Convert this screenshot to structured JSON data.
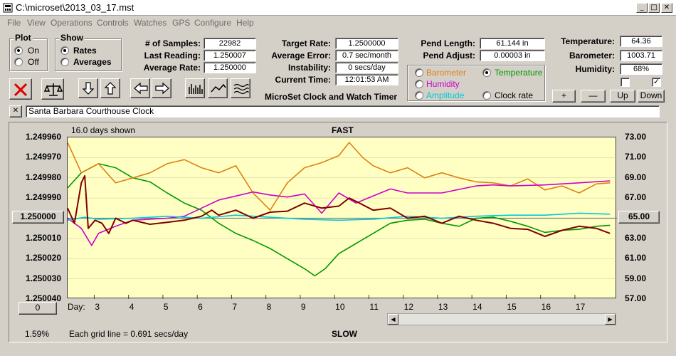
{
  "window": {
    "title": "C:\\microset\\2013_03_17.mst",
    "min": "_",
    "max": "□",
    "close": "✕"
  },
  "menu": [
    "File",
    "View",
    "Operations",
    "Controls",
    "Watches",
    "GPS",
    "Configure",
    "Help"
  ],
  "plot_group": {
    "title": "Plot",
    "on": "On",
    "off": "Off",
    "selected": "On"
  },
  "show_group": {
    "title": "Show",
    "rates": "Rates",
    "averages": "Averages",
    "selected": "Rates"
  },
  "stats": {
    "samples_label": "# of Samples:",
    "samples": "22982",
    "last_label": "Last Reading:",
    "last": "1.250007",
    "avg_rate_label": "Average Rate:",
    "avg_rate": "1.250000"
  },
  "rates": {
    "target_label": "Target Rate:",
    "target": "1.2500000",
    "avg_error_label": "Average Error:",
    "avg_error": "0.7 sec/month",
    "instability_label": "Instability:",
    "instability": "0 secs/day",
    "current_time_label": "Current Time:",
    "current_time": "12:01:53 AM"
  },
  "app_caption": "MicroSet Clock and Watch Timer",
  "pend": {
    "length_label": "Pend Length:",
    "length": "61.144 in",
    "adjust_label": "Pend Adjust:",
    "adjust": "0.00003 in"
  },
  "sensor_series": {
    "barometer": "Barometer",
    "temperature": "Temperature",
    "humidity": "Humidity",
    "amplitude": "Amplitude",
    "clock_rate": "Clock rate",
    "selected": "Temperature"
  },
  "env": {
    "temperature_label": "Temperature:",
    "temperature": "64.36",
    "barometer_label": "Barometer:",
    "barometer": "1003.71",
    "humidity_label": "Humidity:",
    "humidity": "68%"
  },
  "env_checkboxes": [
    false,
    true
  ],
  "adjust_buttons": {
    "plus": "+",
    "minus": "—",
    "up": "Up",
    "down": "Down"
  },
  "watch_name": "Santa Barbara Courthouse Clock",
  "watch_close": "✕",
  "colors": {
    "plot_bg": "#ffffc4",
    "rate": "#800000",
    "temperature": "#009900",
    "barometer": "#e08010",
    "humidity": "#cc00cc",
    "amplitude": "#00c8d8",
    "clock_rate": "#000000"
  },
  "chart_data": {
    "type": "line",
    "title": "FAST",
    "bottom_label": "SLOW",
    "days_shown": "16.0 days shown",
    "grid_note": "Each grid line = 0.691 secs/day",
    "percent": "1.59%",
    "xlabel": "Day:",
    "x_ticks": [
      "3",
      "4",
      "5",
      "6",
      "7",
      "8",
      "9",
      "10",
      "11",
      "12",
      "13",
      "14",
      "15",
      "16",
      "17"
    ],
    "left_ticks": [
      "1.249960",
      "1.249970",
      "1.249980",
      "1.249990",
      "1.250000",
      "1.250010",
      "1.250020",
      "1.250030",
      "1.250040"
    ],
    "left_center": "1.250000",
    "left_offset": "0",
    "right_ticks": [
      "73.00",
      "71.00",
      "69.00",
      "67.00",
      "65.00",
      "63.00",
      "61.00",
      "59.00",
      "57.00"
    ],
    "right_center": "65.00",
    "xlim": [
      2.1,
      18.1
    ],
    "left_ylim": [
      1.24996,
      1.25004
    ],
    "right_ylim": [
      57,
      73
    ],
    "series": [
      {
        "name": "Temperature",
        "points": [
          [
            2.1,
            68.0
          ],
          [
            2.5,
            69.5
          ],
          [
            3.0,
            70.4
          ],
          [
            3.5,
            70.0
          ],
          [
            4.0,
            69.0
          ],
          [
            4.5,
            68.6
          ],
          [
            5.0,
            67.5
          ],
          [
            5.5,
            66.5
          ],
          [
            6.0,
            65.8
          ],
          [
            6.5,
            64.5
          ],
          [
            7.0,
            63.5
          ],
          [
            7.5,
            62.8
          ],
          [
            8.0,
            62.0
          ],
          [
            8.5,
            61.0
          ],
          [
            9.0,
            60.0
          ],
          [
            9.3,
            59.3
          ],
          [
            9.6,
            60.0
          ],
          [
            10.0,
            61.5
          ],
          [
            10.5,
            62.5
          ],
          [
            11.0,
            63.5
          ],
          [
            11.5,
            64.5
          ],
          [
            12.0,
            64.8
          ],
          [
            12.5,
            64.9
          ],
          [
            13.0,
            64.5
          ],
          [
            13.5,
            64.2
          ],
          [
            14.0,
            65.0
          ],
          [
            14.5,
            65.1
          ],
          [
            15.0,
            64.7
          ],
          [
            15.5,
            64.2
          ],
          [
            16.0,
            63.6
          ],
          [
            16.5,
            63.8
          ],
          [
            17.0,
            63.9
          ],
          [
            17.5,
            64.2
          ],
          [
            17.9,
            64.3
          ]
        ]
      },
      {
        "name": "Barometer",
        "points": [
          [
            2.1,
            72.5
          ],
          [
            2.5,
            69.5
          ],
          [
            3.0,
            70.4
          ],
          [
            3.5,
            68.5
          ],
          [
            4.0,
            69.0
          ],
          [
            4.5,
            69.5
          ],
          [
            5.0,
            70.4
          ],
          [
            5.5,
            70.8
          ],
          [
            6.0,
            70.0
          ],
          [
            6.5,
            69.5
          ],
          [
            7.0,
            70.2
          ],
          [
            7.5,
            67.5
          ],
          [
            8.0,
            65.8
          ],
          [
            8.5,
            68.5
          ],
          [
            9.0,
            70.0
          ],
          [
            9.5,
            70.5
          ],
          [
            10.0,
            71.2
          ],
          [
            10.3,
            72.5
          ],
          [
            10.7,
            71.0
          ],
          [
            11.0,
            70.2
          ],
          [
            11.5,
            69.5
          ],
          [
            12.0,
            70.0
          ],
          [
            12.5,
            69.0
          ],
          [
            13.0,
            69.5
          ],
          [
            13.5,
            69.0
          ],
          [
            14.0,
            68.6
          ],
          [
            14.5,
            68.5
          ],
          [
            15.0,
            68.2
          ],
          [
            15.5,
            68.9
          ],
          [
            16.0,
            67.8
          ],
          [
            16.5,
            68.2
          ],
          [
            17.0,
            67.5
          ],
          [
            17.5,
            68.4
          ],
          [
            17.9,
            68.5
          ]
        ]
      },
      {
        "name": "Humidity",
        "points": [
          [
            2.1,
            65.0
          ],
          [
            2.5,
            64.0
          ],
          [
            2.8,
            62.3
          ],
          [
            3.0,
            63.5
          ],
          [
            3.5,
            64.2
          ],
          [
            4.0,
            64.8
          ],
          [
            5.0,
            65.0
          ],
          [
            5.5,
            65.2
          ],
          [
            6.0,
            66.0
          ],
          [
            6.5,
            66.8
          ],
          [
            7.0,
            67.2
          ],
          [
            7.5,
            67.6
          ],
          [
            8.0,
            67.3
          ],
          [
            8.5,
            67.1
          ],
          [
            9.0,
            67.4
          ],
          [
            9.5,
            65.5
          ],
          [
            10.0,
            67.5
          ],
          [
            10.5,
            66.5
          ],
          [
            11.0,
            67.2
          ],
          [
            11.5,
            67.9
          ],
          [
            12.0,
            67.5
          ],
          [
            13.0,
            67.5
          ],
          [
            14.0,
            68.2
          ],
          [
            14.5,
            68.3
          ],
          [
            15.0,
            68.2
          ],
          [
            16.0,
            68.3
          ],
          [
            17.0,
            68.5
          ],
          [
            17.9,
            68.7
          ]
        ]
      },
      {
        "name": "Amplitude",
        "points": [
          [
            2.1,
            64.8
          ],
          [
            2.6,
            65.1
          ],
          [
            3.0,
            64.9
          ],
          [
            4.0,
            65.0
          ],
          [
            5.0,
            65.2
          ],
          [
            6.0,
            65.0
          ],
          [
            7.0,
            65.3
          ],
          [
            8.0,
            65.1
          ],
          [
            9.0,
            64.9
          ],
          [
            10.0,
            64.8
          ],
          [
            11.0,
            64.9
          ],
          [
            12.0,
            65.2
          ],
          [
            13.0,
            65.0
          ],
          [
            14.0,
            65.2
          ],
          [
            15.0,
            65.3
          ],
          [
            16.0,
            65.3
          ],
          [
            17.0,
            65.5
          ],
          [
            17.9,
            65.4
          ]
        ]
      },
      {
        "name": "Rate",
        "points": [
          [
            2.1,
            66.0
          ],
          [
            2.3,
            64.5
          ],
          [
            2.5,
            68.5
          ],
          [
            2.6,
            69.2
          ],
          [
            2.7,
            64.0
          ],
          [
            2.9,
            64.8
          ],
          [
            3.1,
            64.5
          ],
          [
            3.3,
            63.5
          ],
          [
            3.5,
            65.0
          ],
          [
            3.8,
            64.5
          ],
          [
            4.0,
            64.8
          ],
          [
            4.5,
            64.4
          ],
          [
            5.0,
            64.6
          ],
          [
            5.5,
            64.8
          ],
          [
            6.0,
            65.2
          ],
          [
            6.3,
            65.8
          ],
          [
            6.5,
            65.3
          ],
          [
            7.0,
            65.8
          ],
          [
            7.5,
            65.0
          ],
          [
            8.0,
            65.6
          ],
          [
            8.5,
            65.7
          ],
          [
            9.0,
            66.5
          ],
          [
            9.5,
            66.0
          ],
          [
            10.0,
            66.2
          ],
          [
            10.3,
            67.0
          ],
          [
            10.6,
            66.5
          ],
          [
            11.0,
            65.8
          ],
          [
            11.5,
            66.0
          ],
          [
            12.0,
            65.0
          ],
          [
            12.5,
            65.2
          ],
          [
            13.0,
            64.5
          ],
          [
            13.5,
            65.2
          ],
          [
            14.0,
            64.8
          ],
          [
            14.5,
            64.5
          ],
          [
            15.0,
            64.0
          ],
          [
            15.5,
            63.9
          ],
          [
            16.0,
            63.2
          ],
          [
            16.5,
            63.8
          ],
          [
            17.0,
            64.2
          ],
          [
            17.5,
            64.0
          ],
          [
            17.9,
            63.5
          ]
        ]
      }
    ]
  }
}
